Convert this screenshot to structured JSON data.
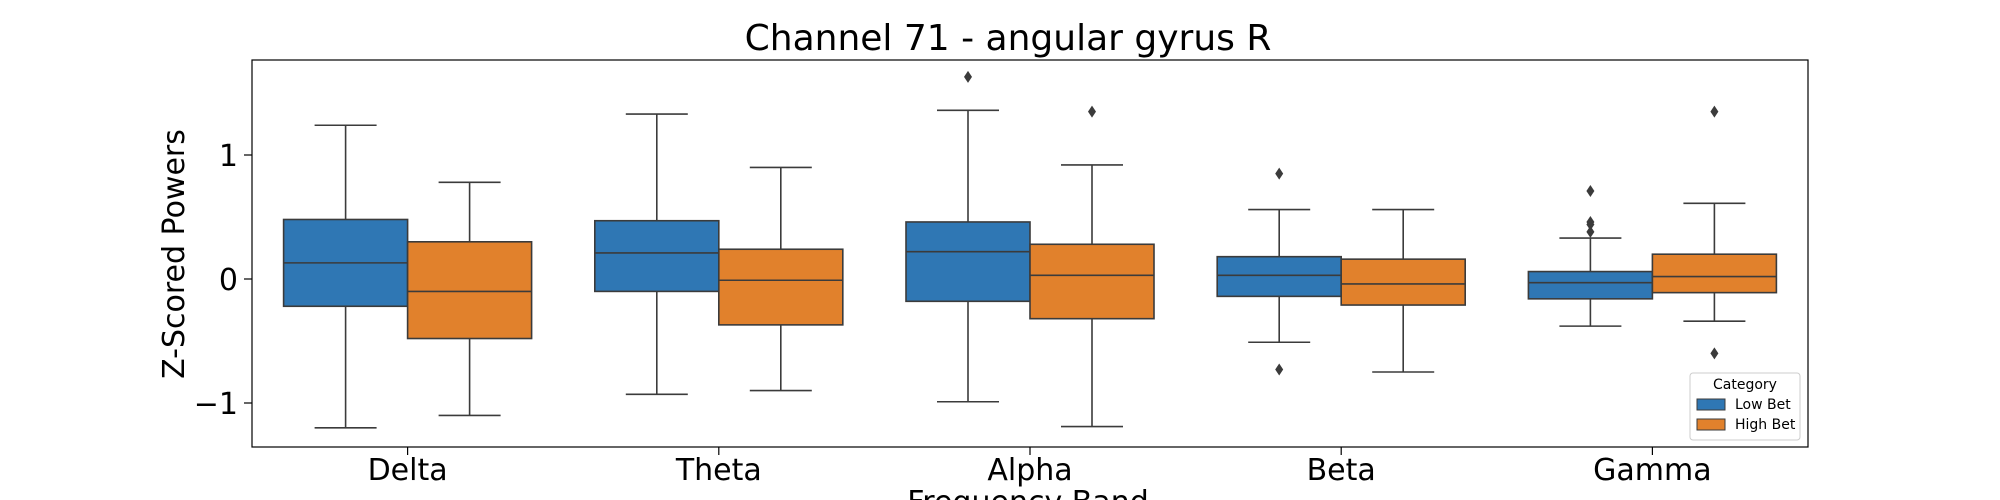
{
  "chart_data": {
    "type": "boxplot",
    "title": "Channel 71 - angular gyrus R",
    "xlabel": "Frequency Band",
    "ylabel": "Z-Scored Powers",
    "categories": [
      "Delta",
      "Theta",
      "Alpha",
      "Beta",
      "Gamma"
    ],
    "yticks": [
      -1,
      0,
      1
    ],
    "ytick_labels": [
      "−1",
      "0",
      "1"
    ],
    "ylim": [
      -1.35,
      1.78
    ],
    "legend": {
      "title": "Category",
      "placement": "lower-right"
    },
    "series": [
      {
        "name": "Low Bet",
        "color": "#2f77b4",
        "boxes": [
          {
            "whislo": -1.2,
            "q1": -0.22,
            "med": 0.13,
            "q3": 0.48,
            "whishi": 1.24,
            "fliers": []
          },
          {
            "whislo": -0.93,
            "q1": -0.1,
            "med": 0.21,
            "q3": 0.47,
            "whishi": 1.33,
            "fliers": []
          },
          {
            "whislo": -0.99,
            "q1": -0.18,
            "med": 0.22,
            "q3": 0.46,
            "whishi": 1.36,
            "fliers": [
              1.63
            ]
          },
          {
            "whislo": -0.51,
            "q1": -0.14,
            "med": 0.03,
            "q3": 0.18,
            "whishi": 0.56,
            "fliers": [
              0.85,
              -0.73
            ]
          },
          {
            "whislo": -0.38,
            "q1": -0.16,
            "med": -0.03,
            "q3": 0.06,
            "whishi": 0.33,
            "fliers": [
              0.71,
              0.46,
              0.44,
              0.38
            ]
          }
        ]
      },
      {
        "name": "High Bet",
        "color": "#e1812c",
        "boxes": [
          {
            "whislo": -1.1,
            "q1": -0.48,
            "med": -0.1,
            "q3": 0.3,
            "whishi": 0.78,
            "fliers": []
          },
          {
            "whislo": -0.9,
            "q1": -0.37,
            "med": -0.01,
            "q3": 0.24,
            "whishi": 0.9,
            "fliers": []
          },
          {
            "whislo": -1.19,
            "q1": -0.32,
            "med": 0.03,
            "q3": 0.28,
            "whishi": 0.92,
            "fliers": [
              1.35
            ]
          },
          {
            "whislo": -0.75,
            "q1": -0.21,
            "med": -0.04,
            "q3": 0.16,
            "whishi": 0.56,
            "fliers": []
          },
          {
            "whislo": -0.34,
            "q1": -0.11,
            "med": 0.02,
            "q3": 0.2,
            "whishi": 0.61,
            "fliers": [
              1.35,
              -0.6
            ]
          }
        ]
      }
    ],
    "grid": false
  }
}
